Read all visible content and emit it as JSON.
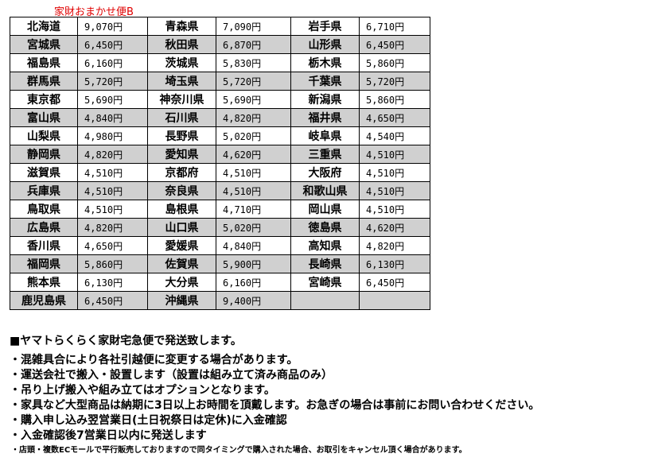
{
  "title": "家財おまかせ便B",
  "rates": [
    [
      "北海道",
      "9,070円",
      "青森県",
      "7,090円",
      "岩手県",
      "6,710円"
    ],
    [
      "宮城県",
      "6,450円",
      "秋田県",
      "6,870円",
      "山形県",
      "6,450円"
    ],
    [
      "福島県",
      "6,160円",
      "茨城県",
      "5,830円",
      "栃木県",
      "5,860円"
    ],
    [
      "群馬県",
      "5,720円",
      "埼玉県",
      "5,720円",
      "千葉県",
      "5,720円"
    ],
    [
      "東京都",
      "5,690円",
      "神奈川県",
      "5,690円",
      "新潟県",
      "5,860円"
    ],
    [
      "富山県",
      "4,840円",
      "石川県",
      "4,820円",
      "福井県",
      "4,650円"
    ],
    [
      "山梨県",
      "4,980円",
      "長野県",
      "5,020円",
      "岐阜県",
      "4,540円"
    ],
    [
      "静岡県",
      "4,820円",
      "愛知県",
      "4,620円",
      "三重県",
      "4,510円"
    ],
    [
      "滋賀県",
      "4,510円",
      "京都府",
      "4,510円",
      "大阪府",
      "4,510円"
    ],
    [
      "兵庫県",
      "4,510円",
      "奈良県",
      "4,510円",
      "和歌山県",
      "4,510円"
    ],
    [
      "鳥取県",
      "4,510円",
      "島根県",
      "4,710円",
      "岡山県",
      "4,510円"
    ],
    [
      "広島県",
      "4,820円",
      "山口県",
      "5,020円",
      "徳島県",
      "4,620円"
    ],
    [
      "香川県",
      "4,650円",
      "愛媛県",
      "4,840円",
      "高知県",
      "4,820円"
    ],
    [
      "福岡県",
      "5,860円",
      "佐賀県",
      "5,900円",
      "長崎県",
      "6,130円"
    ],
    [
      "熊本県",
      "6,130円",
      "大分県",
      "6,160円",
      "宮崎県",
      "6,450円"
    ],
    [
      "鹿児島県",
      "6,450円",
      "沖縄県",
      "9,400円",
      "",
      ""
    ]
  ],
  "notes": {
    "heading": "■ヤマトらくらく家財宅急便で発送致します。",
    "items": [
      "・混雑具合により各社引越便に変更する場合があります。",
      "・運送会社で搬入・設置します（設置は組み立て済み商品のみ）",
      "・吊り上げ搬入や組み立てはオプションとなります。",
      "・家具など大型商品は納期に3日以上お時間を頂戴します。お急ぎの場合は事前にお問い合わせください。",
      "・購入申し込み翌営業日(土日祝祭日は定休)に入金確認",
      "・入金確認後7営業日以内に発送します"
    ],
    "footer": "・店頭・複数ECモールで平行販売しておりますので同タイミングで購入された場合、お取引をキャンセル頂く場合があります。"
  }
}
